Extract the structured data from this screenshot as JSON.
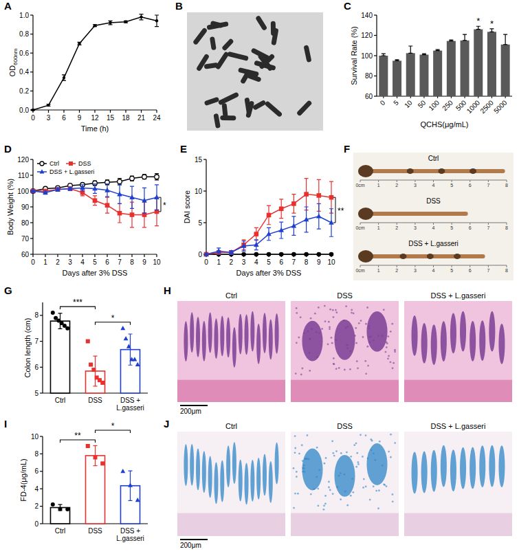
{
  "chart_data": [
    {
      "panel": "A",
      "type": "line",
      "x": [
        0,
        3,
        6,
        9,
        12,
        15,
        18,
        21,
        24
      ],
      "values": [
        0,
        0.05,
        0.34,
        0.7,
        0.89,
        0.92,
        0.93,
        0.98,
        0.94
      ],
      "errors": [
        0.005,
        0.01,
        0.03,
        0.015,
        0.01,
        0.02,
        0.01,
        0.03,
        0.06
      ],
      "color": "#000000",
      "marker": "circle",
      "xlim": [
        0,
        24
      ],
      "xticks": [
        0,
        3,
        6,
        9,
        12,
        15,
        18,
        21,
        24
      ],
      "ylim": [
        0,
        1
      ],
      "yticks": [
        {
          "value": 0,
          "label": "0.0"
        },
        0.2,
        0.4,
        0.6,
        0.8,
        {
          "value": 1,
          "label": "1.0"
        }
      ],
      "xlabel": "Time (h)",
      "ylabel": "OD600nm"
    },
    {
      "panel": "B",
      "type": "image",
      "color": "#2b2b2b"
    },
    {
      "panel": "C",
      "type": "bar",
      "categories": [
        "0",
        "5",
        "10",
        "50",
        "100",
        "250",
        "500",
        "1000",
        "2500",
        "5000"
      ],
      "values": [
        100,
        95,
        102.5,
        101,
        105,
        114.5,
        115,
        126,
        123.5,
        111
      ],
      "errors": [
        2,
        1,
        7,
        1,
        1,
        1,
        6,
        3,
        3,
        10
      ],
      "color": "#595959",
      "ylim": [
        60,
        140
      ],
      "yticks": [
        60,
        80,
        100,
        120,
        140
      ],
      "xlabel": "QCHS(μg/mL)",
      "ylabel": "Survival Rate (%)",
      "annotations": [
        {
          "text": "*",
          "at": 7
        },
        {
          "text": "*",
          "at": 8
        }
      ]
    },
    {
      "panel": "D",
      "type": "line",
      "x": [
        0,
        1,
        2,
        3,
        4,
        5,
        6,
        7,
        8,
        9,
        10
      ],
      "series": [
        {
          "name": "Ctrl",
          "color": "#000000",
          "marker": "open-circle",
          "values": [
            100,
            101.5,
            102,
            103.5,
            104,
            105,
            105.5,
            106,
            108,
            109,
            109
          ],
          "errors": [
            0.5,
            1,
            1,
            1,
            1,
            1.5,
            1.5,
            2,
            1.5,
            1.5,
            2
          ]
        },
        {
          "name": "DSS",
          "color": "#e8312f",
          "marker": "square",
          "values": [
            100,
            100,
            101,
            101.5,
            99,
            94,
            91,
            86,
            85,
            85,
            87
          ],
          "errors": [
            0.5,
            1,
            1,
            1,
            2,
            3,
            5,
            6,
            8,
            8,
            9
          ]
        },
        {
          "name": "DSS + L.gasseri",
          "color": "#1f3fd1",
          "marker": "triangle",
          "values": [
            100,
            99,
            101,
            101.5,
            102,
            101.5,
            100.5,
            98,
            96,
            94,
            96
          ],
          "errors": [
            0.5,
            1,
            1,
            1,
            2,
            3,
            4,
            6,
            7,
            8,
            8
          ]
        }
      ],
      "xlim": [
        0,
        10
      ],
      "xticks": [
        0,
        1,
        2,
        3,
        4,
        5,
        6,
        7,
        8,
        9,
        10
      ],
      "ylim": [
        60,
        120
      ],
      "yticks": [
        60,
        70,
        80,
        90,
        100,
        110,
        120
      ],
      "xlabel": "Days after 3% DSS",
      "ylabel": "Body Weight (%)",
      "legend": "upper left",
      "annotations": [
        {
          "text": "*",
          "between": [
            1,
            2
          ]
        }
      ]
    },
    {
      "panel": "E",
      "type": "line",
      "x": [
        0,
        1,
        2,
        3,
        4,
        5,
        6,
        7,
        8,
        9,
        10
      ],
      "series": [
        {
          "color": "#000000",
          "marker": "circle",
          "values": [
            0,
            0,
            0,
            0,
            0,
            0,
            0,
            0,
            0,
            0,
            0
          ],
          "errors": [
            0,
            0,
            0,
            0,
            0,
            0,
            0,
            0,
            0,
            0,
            0
          ]
        },
        {
          "color": "#e8312f",
          "marker": "square",
          "values": [
            0,
            0.3,
            0.3,
            1.5,
            3.2,
            6.2,
            7.2,
            8,
            9.5,
            9.3,
            9
          ],
          "errors": [
            0,
            0.3,
            0.3,
            0.8,
            1,
            1.5,
            1.5,
            1.5,
            2.5,
            2.5,
            2.5
          ]
        },
        {
          "color": "#1f3fd1",
          "marker": "triangle",
          "values": [
            0,
            0.5,
            0.3,
            1.3,
            1.5,
            3.2,
            3.8,
            4.5,
            5.5,
            6,
            5
          ],
          "errors": [
            0,
            0.5,
            0.3,
            0.8,
            0.8,
            1,
            1.3,
            1.5,
            2,
            2,
            2.2
          ]
        }
      ],
      "xlim": [
        0,
        10
      ],
      "xticks": [
        0,
        1,
        2,
        3,
        4,
        5,
        6,
        7,
        8,
        9,
        10
      ],
      "ylim": [
        0,
        15
      ],
      "yticks": [
        0,
        5,
        10,
        15
      ],
      "xlabel": "Days after 3% DSS",
      "ylabel": "DAI score",
      "annotations": [
        {
          "text": "**",
          "between": [
            1,
            2
          ]
        }
      ]
    },
    {
      "panel": "F",
      "type": "image",
      "labels": [
        "Ctrl",
        "DSS",
        "DSS + L.gasseri"
      ],
      "ruler": [
        "0cm",
        "1",
        "2",
        "3",
        "4",
        "5",
        "6",
        "7",
        "8"
      ],
      "color": "#5a3b22"
    },
    {
      "panel": "G",
      "type": "bar",
      "categories": [
        "Ctrl",
        "DSS",
        "DSS + L.gasseri"
      ],
      "values": [
        7.78,
        5.85,
        6.68
      ],
      "errors": [
        0.3,
        0.58,
        0.6
      ],
      "points": [
        [
          8.1,
          7.9,
          7.8,
          7.7,
          7.6,
          7.5
        ],
        [
          7.0,
          6.1,
          5.9,
          5.6,
          5.5,
          5.4
        ],
        [
          7.5,
          7.1,
          6.8,
          6.3,
          6.3,
          6.1
        ]
      ],
      "colors": [
        "#000000",
        "#e8312f",
        "#1f3fd1"
      ],
      "ylim": [
        5,
        8.5
      ],
      "yticks": [
        5,
        6,
        7,
        8
      ],
      "ylabel": "Colon length (cm)",
      "annotations": [
        {
          "text": "***",
          "between": [
            0,
            1
          ]
        },
        {
          "text": "*",
          "between": [
            1,
            2
          ]
        }
      ]
    },
    {
      "panel": "H",
      "type": "image",
      "labels": [
        "Ctrl",
        "DSS",
        "DSS + L.gasseri"
      ],
      "scale_bar": "200μm",
      "color": "#7b3f95"
    },
    {
      "panel": "I",
      "type": "bar",
      "categories": [
        "Ctrl",
        "DSS",
        "DSS + L.gasseri"
      ],
      "values": [
        1.85,
        7.8,
        4.35
      ],
      "errors": [
        0.35,
        1.15,
        1.7
      ],
      "points": [
        [
          2.2,
          1.7,
          1.65
        ],
        [
          8.9,
          7.6,
          6.9
        ],
        [
          6.0,
          4.4,
          2.7
        ]
      ],
      "colors": [
        "#000000",
        "#e8312f",
        "#1f3fd1"
      ],
      "ylim": [
        0,
        10
      ],
      "yticks": [
        0,
        2,
        4,
        6,
        8,
        10
      ],
      "ylabel": "FD-4(μg/mL)",
      "annotations": [
        {
          "text": "**",
          "between": [
            0,
            1
          ]
        },
        {
          "text": "*",
          "between": [
            1,
            2
          ]
        }
      ]
    },
    {
      "panel": "J",
      "type": "image",
      "labels": [
        "Ctrl",
        "DSS",
        "DSS + L.gasseri"
      ],
      "scale_bar": "200μm",
      "color": "#2f86c6"
    }
  ]
}
